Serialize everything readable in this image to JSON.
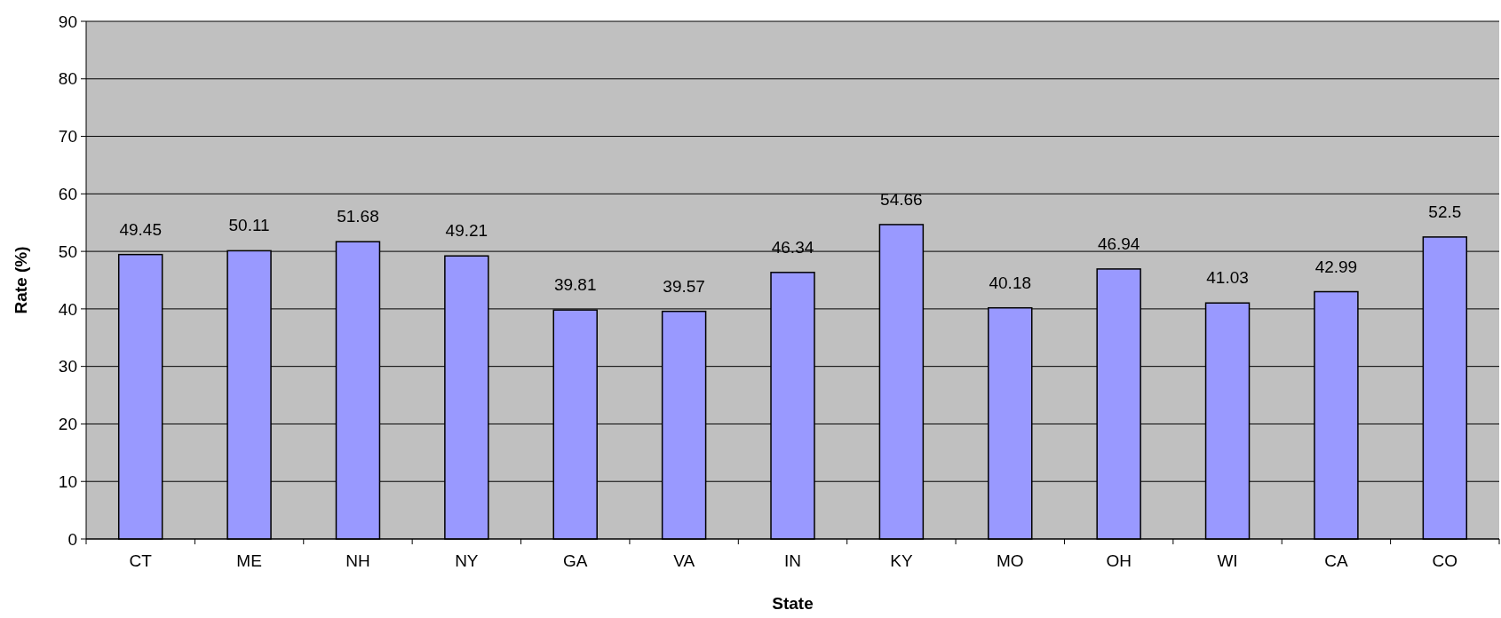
{
  "chart_data": {
    "type": "bar",
    "xlabel": "State",
    "ylabel": "Rate (%)",
    "categories": [
      "CT",
      "ME",
      "NH",
      "NY",
      "GA",
      "VA",
      "IN",
      "KY",
      "MO",
      "OH",
      "WI",
      "CA",
      "CO"
    ],
    "values": [
      49.45,
      50.11,
      51.68,
      49.21,
      39.81,
      39.57,
      46.34,
      54.66,
      40.18,
      46.94,
      41.03,
      42.99,
      52.5
    ],
    "color": "#9999ff",
    "ylim": [
      0,
      90
    ],
    "yticks": [
      0,
      10,
      20,
      30,
      40,
      50,
      60,
      70,
      80,
      90
    ],
    "grid": "y",
    "data_labels": true
  }
}
